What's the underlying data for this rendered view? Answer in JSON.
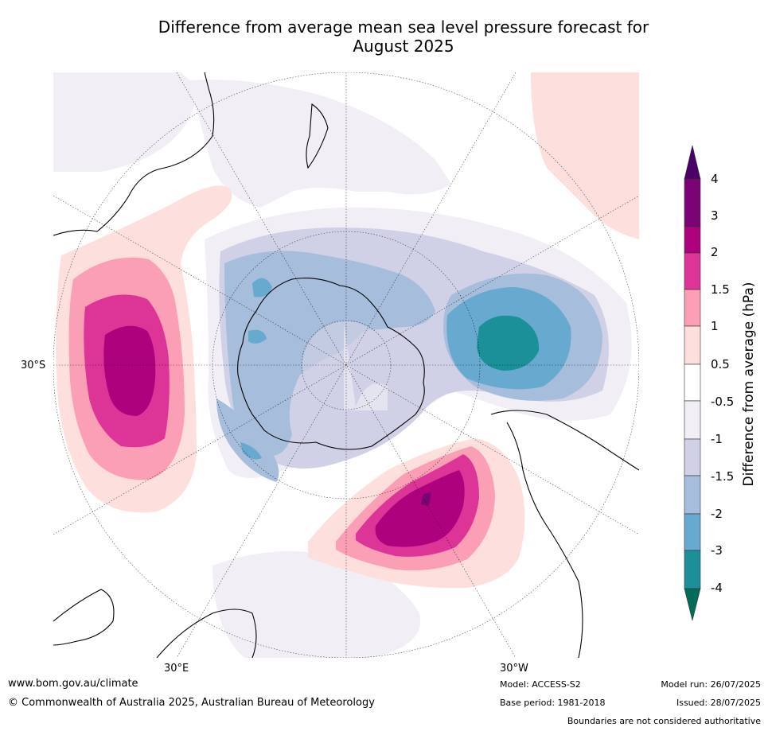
{
  "title_line1": "Difference from average mean sea level pressure forecast for",
  "title_line2": "August 2025",
  "map": {
    "label_30s": "30°S",
    "label_30e": "30°E",
    "label_30w": "30°W"
  },
  "colorbar": {
    "label": "Difference from average (hPa)",
    "ticks": [
      "4",
      "3",
      "2",
      "1.5",
      "1",
      "0.5",
      "-0.5",
      "-1",
      "-1.5",
      "-2",
      "-3",
      "-4"
    ],
    "colors": {
      "over": "#4a0069",
      "c_3_4": "#7a0375",
      "c_2_3": "#ae017e",
      "c_15_2": "#dd3497",
      "c_1_15": "#fa9fb5",
      "c_05_1": "#fde0dd",
      "c_neutral": "#ffffff",
      "c_m1_m05": "#f2eef6",
      "c_m15_m1": "#d0d1e6",
      "c_m2_m15": "#a6bddb",
      "c_m3_m2": "#67a9cf",
      "c_m4_m3": "#1c9099",
      "under": "#016c59"
    }
  },
  "footer": {
    "website": "www.bom.gov.au/climate",
    "copyright": "© Commonwealth of Australia 2025, Australian Bureau of Meteorology",
    "model": "Model: ACCESS-S2",
    "base_period": "Base period: 1981-2018",
    "model_run": "Model run: 26/07/2025",
    "issued": "Issued: 28/07/2025",
    "disclaimer": "Boundaries are not considered authoritative"
  }
}
